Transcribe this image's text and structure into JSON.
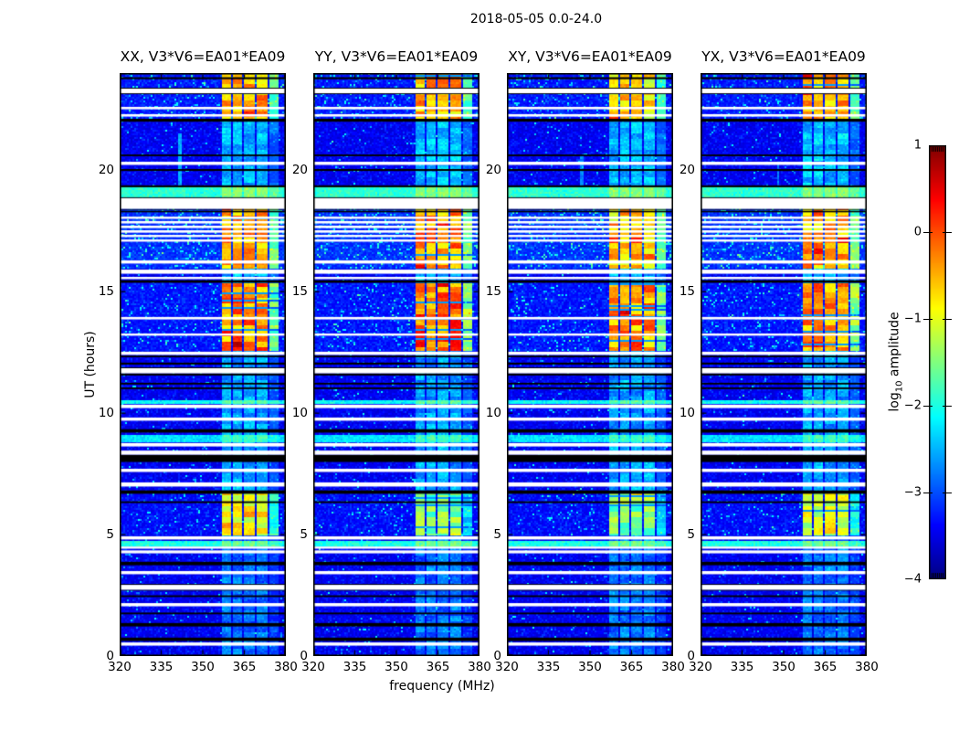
{
  "suptitle": "2018-05-05 0.0-24.0",
  "chart_data": {
    "type": "heatmap",
    "subtype": "dynamic-spectrum-spectrogram",
    "title": "2018-05-05 0.0-24.0",
    "xlabel": "frequency (MHz)",
    "ylabel": "UT (hours)",
    "x_range": [
      320,
      380
    ],
    "y_range": [
      0,
      24
    ],
    "x_ticks": [
      320,
      335,
      350,
      365,
      380
    ],
    "x_tick_labels": [
      "320",
      "335",
      "350",
      "365",
      "380"
    ],
    "y_ticks": [
      0,
      5,
      10,
      15,
      20
    ],
    "y_tick_labels": [
      "0",
      "5",
      "10",
      "15",
      "20"
    ],
    "grid": false,
    "panels": [
      {
        "title": "XX, V3*V6=EA01*EA09",
        "seed": 101
      },
      {
        "title": "YY, V3*V6=EA01*EA09",
        "seed": 202
      },
      {
        "title": "XY, V3*V6=EA01*EA09",
        "seed": 303
      },
      {
        "title": "YX, V3*V6=EA01*EA09",
        "seed": 404
      }
    ],
    "colorbar": {
      "label_prefix": "log",
      "label_sub": "10",
      "label_suffix": " amplitude",
      "ticks": [
        "1",
        "0",
        "−1",
        "−2",
        "−3",
        "−4"
      ],
      "tick_values": [
        1,
        0,
        -1,
        -2,
        -3,
        -4
      ],
      "vmin": -4,
      "vmax": 1,
      "colormap": "jet",
      "position": "right"
    },
    "background_noise_level": -3.6,
    "rfi_subbands_mhz": [
      [
        356.8,
        360.1,
        1.0
      ],
      [
        360.7,
        364.4,
        1.0
      ],
      [
        365.0,
        368.7,
        1.0
      ],
      [
        369.3,
        373.2,
        1.0
      ],
      [
        373.8,
        377.2,
        0.55
      ]
    ],
    "bright_events": [
      {
        "t": [
          22.12,
          24.0
        ],
        "levels": [
          -0.55,
          -0.5,
          -0.75,
          -0.5
        ],
        "var": 0.5,
        "bg_boost": 0.18
      },
      {
        "t": [
          15.95,
          18.41
        ],
        "levels": [
          -0.5,
          -0.38,
          -0.6,
          -0.45
        ],
        "var": 0.55,
        "bg_boost": 0.3
      },
      {
        "t": [
          12.55,
          15.37
        ],
        "levels": [
          -0.3,
          -0.12,
          -0.38,
          -0.28
        ],
        "var": 0.6,
        "bg_boost": 0.15
      },
      {
        "t": [
          4.93,
          6.68
        ],
        "levels": [
          -0.9,
          -1.55,
          -1.5,
          -1.15
        ],
        "var": 0.45,
        "bg_boost": 0.1
      }
    ],
    "moderate_windows": [
      [
        0.0,
        4.93,
        -2.75
      ],
      [
        6.68,
        12.55,
        -2.5
      ],
      [
        15.37,
        15.95,
        -2.4
      ],
      [
        18.41,
        22.12,
        -2.35
      ]
    ],
    "bright_rows": [
      [
        18.89,
        19.32,
        -1.9
      ],
      [
        10.38,
        10.57,
        -2.1
      ],
      [
        8.84,
        9.07,
        -2.25
      ],
      [
        4.55,
        4.72,
        -2.0
      ]
    ],
    "flagged_white_stripes_t": [
      [
        23.17,
        23.36
      ],
      [
        22.51,
        22.61
      ],
      [
        22.21,
        22.31
      ],
      [
        20.22,
        20.35
      ],
      [
        18.41,
        18.85
      ],
      [
        18.0,
        18.09
      ],
      [
        17.81,
        17.91
      ],
      [
        17.62,
        17.72
      ],
      [
        17.43,
        17.53
      ],
      [
        17.25,
        17.34
      ],
      [
        17.06,
        17.15
      ],
      [
        16.16,
        16.29
      ],
      [
        15.74,
        15.91
      ],
      [
        15.52,
        15.61
      ],
      [
        13.86,
        13.96
      ],
      [
        13.19,
        13.28
      ],
      [
        12.4,
        12.53
      ],
      [
        11.64,
        11.85
      ],
      [
        10.21,
        10.35
      ],
      [
        9.69,
        9.82
      ],
      [
        8.63,
        8.77
      ],
      [
        8.29,
        8.46
      ],
      [
        7.58,
        7.71
      ],
      [
        6.98,
        7.15
      ],
      [
        4.8,
        4.93
      ],
      [
        4.42,
        4.51
      ],
      [
        4.23,
        4.35
      ],
      [
        3.37,
        3.5
      ],
      [
        2.73,
        2.93
      ],
      [
        2.05,
        2.18
      ],
      [
        0.43,
        0.56
      ]
    ],
    "black_stripes_t": [
      [
        23.75,
        23.83
      ],
      [
        22.0,
        22.12
      ],
      [
        20.58,
        20.65
      ],
      [
        19.97,
        20.05
      ],
      [
        19.3,
        19.38
      ],
      [
        18.27,
        18.33
      ],
      [
        15.37,
        15.47
      ],
      [
        12.3,
        12.37
      ],
      [
        12.0,
        12.08
      ],
      [
        11.55,
        11.62
      ],
      [
        11.18,
        11.25
      ],
      [
        10.99,
        11.06
      ],
      [
        9.2,
        9.34
      ],
      [
        7.99,
        8.29
      ],
      [
        6.68,
        6.82
      ],
      [
        6.3,
        6.37
      ],
      [
        3.74,
        3.88
      ],
      [
        2.43,
        2.5
      ],
      [
        1.72,
        1.79
      ],
      [
        1.22,
        1.36
      ],
      [
        0.62,
        0.76
      ]
    ],
    "narrow_vlines": [
      {
        "panel": 0,
        "f": 341.8,
        "t": [
          19.35,
          21.55
        ],
        "level": -2.5
      },
      {
        "panel": 2,
        "f": 347.0,
        "t": [
          19.0,
          20.6
        ],
        "level": -2.7
      },
      {
        "panel": 3,
        "f": 348.0,
        "t": [
          18.9,
          20.3
        ],
        "level": -2.75
      }
    ],
    "frame_color": "#000000",
    "colors": {
      "noise_blue": "#0000e5",
      "speckle_cyan": "#00c7ff",
      "block_orange": "#ff8a00",
      "block_red": "#d40000"
    }
  }
}
